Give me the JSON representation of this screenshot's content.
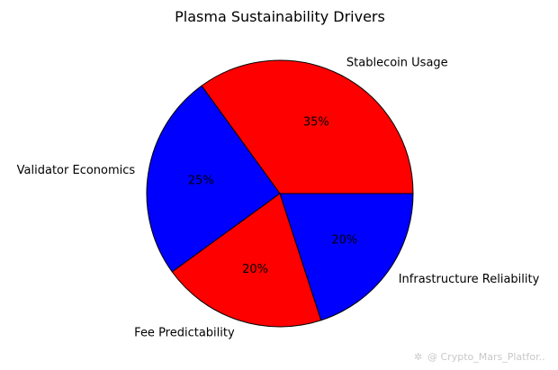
{
  "chart_data": {
    "type": "pie",
    "title": "Plasma Sustainability Drivers",
    "slices": [
      {
        "label": "Stablecoin Usage",
        "value": 35,
        "pct_label": "35%",
        "color": "#ff0000"
      },
      {
        "label": "Validator Economics",
        "value": 25,
        "pct_label": "25%",
        "color": "#0000ff"
      },
      {
        "label": "Fee Predictability",
        "value": 20,
        "pct_label": "20%",
        "color": "#ff0000"
      },
      {
        "label": "Infrastructure Reliability",
        "value": 20,
        "pct_label": "20%",
        "color": "#0000ff"
      }
    ],
    "start_angle_deg": 0,
    "direction": "counterclockwise",
    "edge_color": "#000000"
  },
  "watermark": "@ Crypto_Mars_Platfor..",
  "watermark_icon": "sparkle-icon"
}
